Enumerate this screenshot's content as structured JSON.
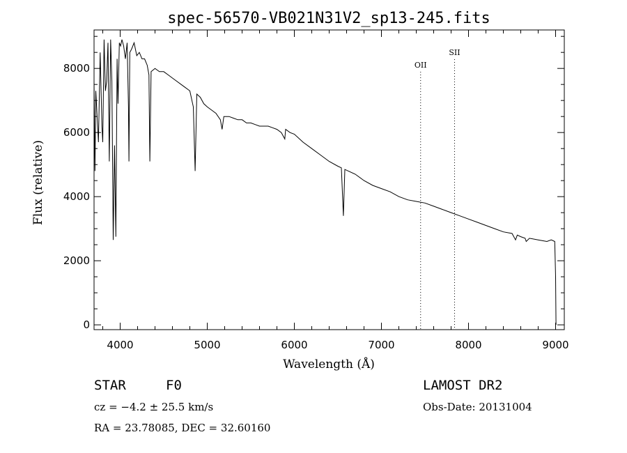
{
  "chart_data": {
    "type": "line",
    "title": "spec-56570-VB021N31V2_sp13-245.fits",
    "xlabel": "Wavelength (Å)",
    "ylabel": "Flux (relative)",
    "xlim": [
      3700,
      9100
    ],
    "ylim": [
      -150,
      9200
    ],
    "x_ticks": [
      {
        "value": 4000,
        "label": "4000"
      },
      {
        "value": 5000,
        "label": "5000"
      },
      {
        "value": 6000,
        "label": "6000"
      },
      {
        "value": 7000,
        "label": "7000"
      },
      {
        "value": 8000,
        "label": "8000"
      },
      {
        "value": 9000,
        "label": "9000"
      }
    ],
    "y_ticks": [
      {
        "value": 0,
        "label": "0"
      },
      {
        "value": 2000,
        "label": "2000"
      },
      {
        "value": 4000,
        "label": "4000"
      },
      {
        "value": 6000,
        "label": "6000"
      },
      {
        "value": 8000,
        "label": "8000"
      }
    ],
    "series": [
      {
        "name": "spectrum",
        "x": [
          3700,
          3710,
          3720,
          3735,
          3750,
          3770,
          3790,
          3800,
          3815,
          3830,
          3845,
          3860,
          3875,
          3890,
          3905,
          3920,
          3935,
          3950,
          3965,
          3975,
          3990,
          4005,
          4020,
          4040,
          4060,
          4080,
          4095,
          4101,
          4110,
          4130,
          4160,
          4190,
          4220,
          4250,
          4280,
          4310,
          4330,
          4341,
          4355,
          4400,
          4450,
          4500,
          4550,
          4600,
          4650,
          4700,
          4750,
          4800,
          4840,
          4861,
          4880,
          4920,
          4960,
          5000,
          5050,
          5100,
          5150,
          5170,
          5190,
          5250,
          5300,
          5350,
          5400,
          5450,
          5500,
          5550,
          5600,
          5650,
          5700,
          5750,
          5800,
          5850,
          5890,
          5900,
          5950,
          6000,
          6100,
          6200,
          6300,
          6400,
          6500,
          6540,
          6563,
          6580,
          6620,
          6700,
          6800,
          6900,
          7000,
          7100,
          7200,
          7300,
          7400,
          7500,
          7600,
          7700,
          7800,
          7900,
          8000,
          8100,
          8200,
          8300,
          8400,
          8500,
          8540,
          8560,
          8600,
          8650,
          8662,
          8700,
          8800,
          8900,
          8950,
          8990,
          9000,
          9005
        ],
        "y": [
          7600,
          4800,
          7300,
          6500,
          5700,
          8500,
          6200,
          5700,
          8900,
          7300,
          7600,
          8800,
          5100,
          8900,
          7600,
          2650,
          5600,
          2750,
          8300,
          6900,
          8800,
          8700,
          8900,
          8700,
          8300,
          8800,
          6800,
          5100,
          8500,
          8600,
          8800,
          8400,
          8500,
          8300,
          8300,
          8100,
          7800,
          5100,
          7900,
          8000,
          7900,
          7900,
          7800,
          7700,
          7600,
          7500,
          7400,
          7300,
          6800,
          4800,
          7200,
          7100,
          6900,
          6800,
          6700,
          6600,
          6400,
          6100,
          6500,
          6500,
          6450,
          6400,
          6400,
          6300,
          6300,
          6250,
          6200,
          6200,
          6200,
          6150,
          6100,
          6000,
          5800,
          6100,
          6000,
          5950,
          5700,
          5500,
          5300,
          5100,
          4950,
          4900,
          3400,
          4850,
          4800,
          4700,
          4500,
          4350,
          4250,
          4150,
          4000,
          3900,
          3850,
          3800,
          3700,
          3600,
          3500,
          3400,
          3300,
          3200,
          3100,
          3000,
          2900,
          2850,
          2650,
          2800,
          2750,
          2700,
          2600,
          2700,
          2650,
          2600,
          2650,
          2600,
          1500,
          0
        ]
      }
    ],
    "annotations": [
      {
        "label": "OII",
        "x": 7450
      },
      {
        "label": "SII",
        "x": 7840
      }
    ]
  },
  "info": {
    "object_class": "STAR",
    "subclass": "F0",
    "survey": "LAMOST DR2",
    "redshift": "cz = −4.2 ± 25.5 km/s",
    "obs_date": "Obs-Date: 20131004",
    "coords": "RA =  23.78085, DEC =  32.60160"
  }
}
